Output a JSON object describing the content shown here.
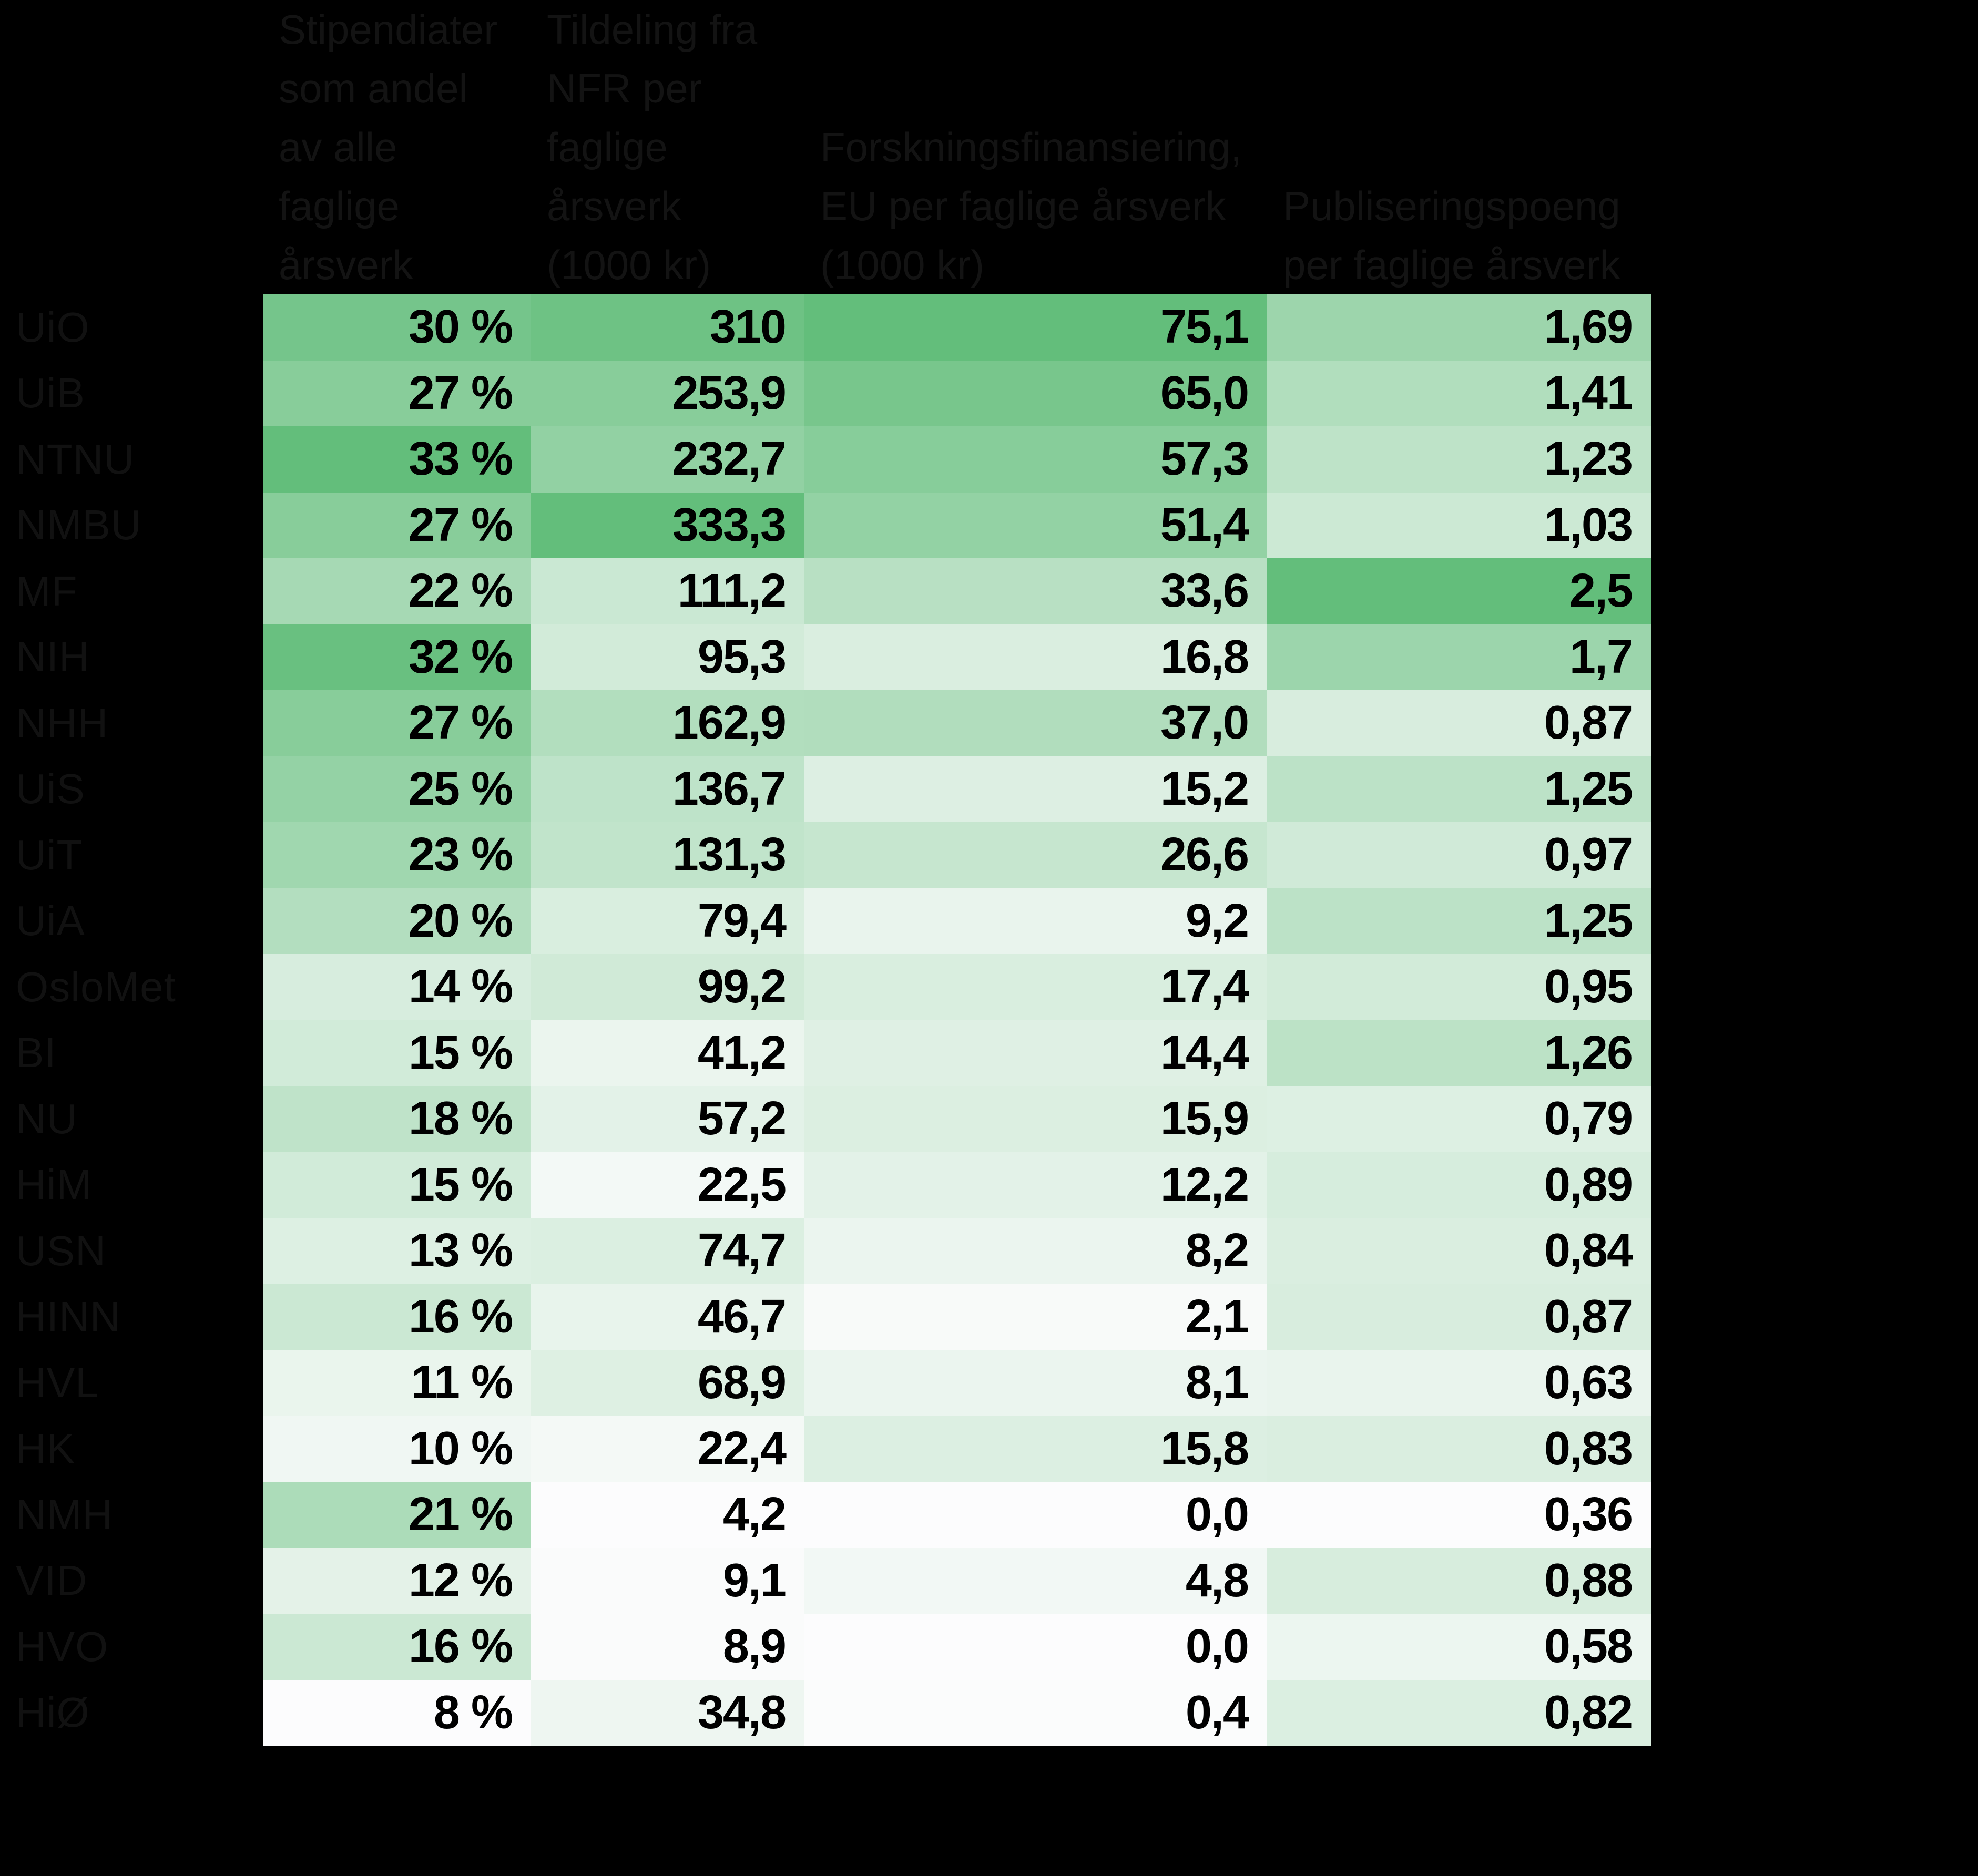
{
  "colors": {
    "background": "#000000",
    "scale_min_color": "#FCFCFD",
    "scale_max_color": "#63BE7B",
    "cell_text_color": "#000000",
    "header_text_color": "#131313"
  },
  "chart_data": {
    "type": "heatmap",
    "title": "",
    "legend_position": "none",
    "grid": false,
    "column_headers": [
      "Stipendiater som andel av alle faglige årsverk",
      "Tildeling fra NFR per faglige årsverk (1000 kr)",
      "Forskningsfinansiering, EU per faglige årsverk (1000 kr)",
      "Publiseringspoeng per faglige årsverk"
    ],
    "column_headers_multiline": [
      "Stipendiater\nsom andel\nav alle\nfaglige\nårsverk",
      "Tildeling fra\nNFR per\nfaglige\nårsverk\n(1000 kr)",
      "Forskningsfinansiering,\nEU per faglige årsverk\n(1000 kr)",
      "Publiseringspoeng\nper faglige årsverk"
    ],
    "row_labels": [
      "UiO",
      "UiB",
      "NTNU",
      "NMBU",
      "MF",
      "NIH",
      "NHH",
      "UiS",
      "UiT",
      "UiA",
      "OsloMet",
      "BI",
      "NU",
      "HiM",
      "USN",
      "HINN",
      "HVL",
      "HK",
      "NMH",
      "VID",
      "HVO",
      "HiØ"
    ],
    "display_values": [
      [
        "30 %",
        "310",
        "75,1",
        "1,69"
      ],
      [
        "27 %",
        "253,9",
        "65,0",
        "1,41"
      ],
      [
        "33 %",
        "232,7",
        "57,3",
        "1,23"
      ],
      [
        "27 %",
        "333,3",
        "51,4",
        "1,03"
      ],
      [
        "22 %",
        "111,2",
        "33,6",
        "2,5"
      ],
      [
        "32 %",
        "95,3",
        "16,8",
        "1,7"
      ],
      [
        "27 %",
        "162,9",
        "37,0",
        "0,87"
      ],
      [
        "25 %",
        "136,7",
        "15,2",
        "1,25"
      ],
      [
        "23 %",
        "131,3",
        "26,6",
        "0,97"
      ],
      [
        "20 %",
        "79,4",
        "9,2",
        "1,25"
      ],
      [
        "14 %",
        "99,2",
        "17,4",
        "0,95"
      ],
      [
        "15 %",
        "41,2",
        "14,4",
        "1,26"
      ],
      [
        "18 %",
        "57,2",
        "15,9",
        "0,79"
      ],
      [
        "15 %",
        "22,5",
        "12,2",
        "0,89"
      ],
      [
        "13 %",
        "74,7",
        "8,2",
        "0,84"
      ],
      [
        "16 %",
        "46,7",
        "2,1",
        "0,87"
      ],
      [
        "11 %",
        "68,9",
        "8,1",
        "0,63"
      ],
      [
        "10 %",
        "22,4",
        "15,8",
        "0,83"
      ],
      [
        "21 %",
        "4,2",
        "0,0",
        "0,36"
      ],
      [
        "12 %",
        "9,1",
        "4,8",
        "0,88"
      ],
      [
        "16 %",
        "8,9",
        "0,0",
        "0,58"
      ],
      [
        "8 %",
        "34,8",
        "0,4",
        "0,82"
      ]
    ],
    "values": [
      [
        30,
        310,
        75.1,
        1.69
      ],
      [
        27,
        253.9,
        65.0,
        1.41
      ],
      [
        33,
        232.7,
        57.3,
        1.23
      ],
      [
        27,
        333.3,
        51.4,
        1.03
      ],
      [
        22,
        111.2,
        33.6,
        2.5
      ],
      [
        32,
        95.3,
        16.8,
        1.7
      ],
      [
        27,
        162.9,
        37.0,
        0.87
      ],
      [
        25,
        136.7,
        15.2,
        1.25
      ],
      [
        23,
        131.3,
        26.6,
        0.97
      ],
      [
        20,
        79.4,
        9.2,
        1.25
      ],
      [
        14,
        99.2,
        17.4,
        0.95
      ],
      [
        15,
        41.2,
        14.4,
        1.26
      ],
      [
        18,
        57.2,
        15.9,
        0.79
      ],
      [
        15,
        22.5,
        12.2,
        0.89
      ],
      [
        13,
        74.7,
        8.2,
        0.84
      ],
      [
        16,
        46.7,
        2.1,
        0.87
      ],
      [
        11,
        68.9,
        8.1,
        0.63
      ],
      [
        10,
        22.4,
        15.8,
        0.83
      ],
      [
        21,
        4.2,
        0.0,
        0.36
      ],
      [
        12,
        9.1,
        4.8,
        0.88
      ],
      [
        16,
        8.9,
        0.0,
        0.58
      ],
      [
        8,
        34.8,
        0.4,
        0.82
      ]
    ],
    "color_scale": {
      "mode": "per-column-linear",
      "min_color": "#FCFCFD",
      "max_color": "#63BE7B"
    }
  }
}
